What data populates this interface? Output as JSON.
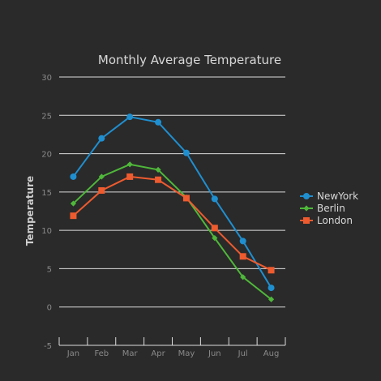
{
  "chart_data": {
    "type": "line",
    "title": "Monthly Average Temperature",
    "xlabel": "",
    "ylabel": "Temperature",
    "categories": [
      "Jan",
      "Feb",
      "Mar",
      "Apr",
      "May",
      "Jun",
      "Jul",
      "Aug"
    ],
    "ylim": [
      -5,
      30
    ],
    "yticks": [
      -5,
      0,
      5,
      10,
      15,
      20,
      25,
      30
    ],
    "grid": "horizontal",
    "legend": "right",
    "series": [
      {
        "name": "NewYork",
        "color": "#1f8fd0",
        "marker": "circle",
        "values": [
          17.0,
          22.0,
          24.8,
          24.1,
          20.1,
          14.1,
          8.6,
          2.5
        ]
      },
      {
        "name": "Berlin",
        "color": "#4fb83a",
        "marker": "diamond",
        "values": [
          13.5,
          17.0,
          18.6,
          17.9,
          14.3,
          9.0,
          3.9,
          1.0
        ]
      },
      {
        "name": "London",
        "color": "#ee5b2f",
        "marker": "square",
        "values": [
          11.9,
          15.2,
          17.0,
          16.6,
          14.2,
          10.3,
          6.6,
          4.8
        ]
      }
    ]
  }
}
